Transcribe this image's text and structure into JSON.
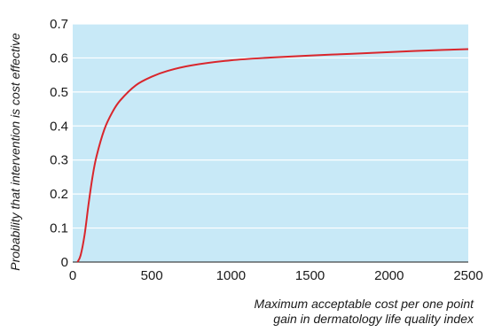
{
  "chart_data": {
    "type": "line",
    "xlabel_lines": [
      "Maximum acceptable cost per one point",
      "gain in dermatology life quality index"
    ],
    "ylabel": "Probability that intervention is cost effective",
    "xlim": [
      0,
      2500
    ],
    "ylim": [
      0,
      0.7
    ],
    "xticks": [
      "0",
      "500",
      "1000",
      "1500",
      "2000",
      "2500"
    ],
    "xtick_values": [
      0,
      500,
      1000,
      1500,
      2000,
      2500
    ],
    "yticks": [
      "0",
      "0.1",
      "0.2",
      "0.3",
      "0.4",
      "0.5",
      "0.6",
      "0.7"
    ],
    "ytick_values": [
      0,
      0.1,
      0.2,
      0.3,
      0.4,
      0.5,
      0.6,
      0.7
    ],
    "grid": "horizontal",
    "plot_background": "#c8e9f7",
    "line_color": "#d9262c",
    "series": [
      {
        "x": [
          30,
          50,
          75,
          100,
          125,
          150,
          200,
          250,
          300,
          400,
          500,
          600,
          750,
          1000,
          1250,
          1500,
          1750,
          2000,
          2250,
          2500
        ],
        "y": [
          0.0,
          0.02,
          0.08,
          0.17,
          0.25,
          0.31,
          0.39,
          0.44,
          0.475,
          0.52,
          0.545,
          0.562,
          0.578,
          0.593,
          0.601,
          0.607,
          0.612,
          0.617,
          0.622,
          0.626
        ]
      }
    ]
  }
}
